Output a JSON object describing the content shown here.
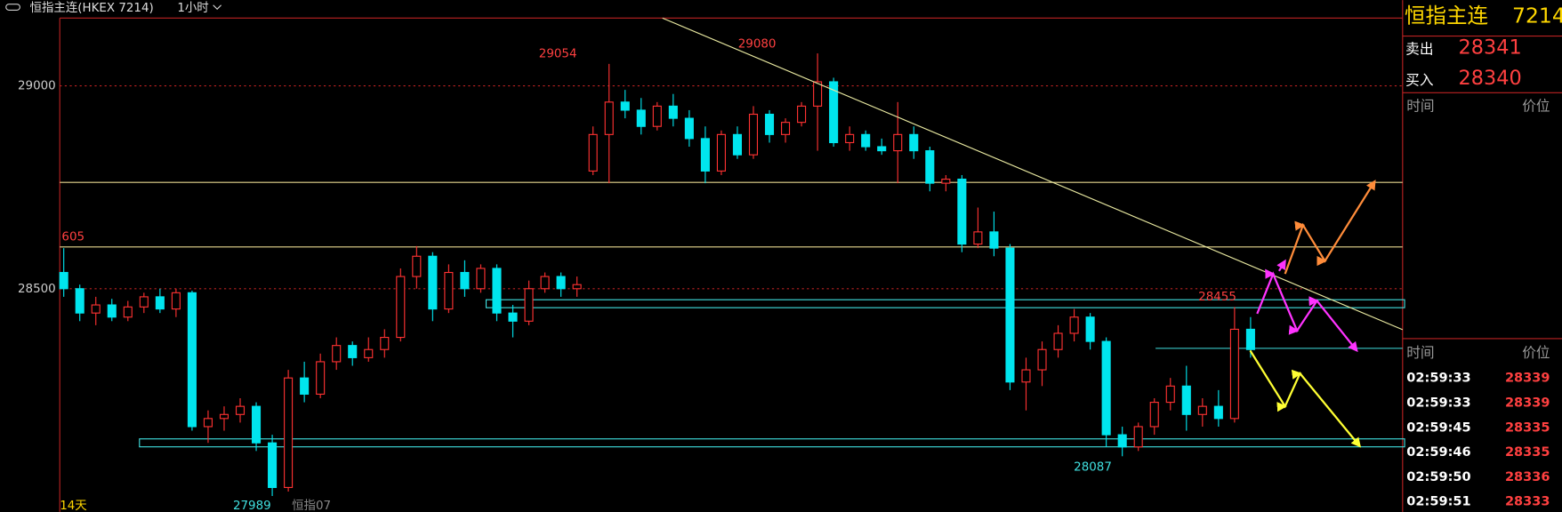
{
  "header": {
    "title": "恒指主连(HKEX 7214)",
    "period": "1小时"
  },
  "chart_data": {
    "type": "candlestick",
    "ylim": [
      27950,
      29167
    ],
    "yticks": [
      28500,
      29000
    ],
    "grid": true,
    "up_color": "#ff3232",
    "down_color": "#00e5ee",
    "candles": [
      [
        28540,
        28600,
        28480,
        28500
      ],
      [
        28500,
        28510,
        28420,
        28440
      ],
      [
        28440,
        28480,
        28410,
        28460
      ],
      [
        28460,
        28475,
        28420,
        28430
      ],
      [
        28430,
        28470,
        28420,
        28455
      ],
      [
        28455,
        28490,
        28440,
        28480
      ],
      [
        28480,
        28500,
        28440,
        28450
      ],
      [
        28450,
        28500,
        28430,
        28490
      ],
      [
        28490,
        28495,
        28150,
        28160
      ],
      [
        28160,
        28200,
        28120,
        28180
      ],
      [
        28180,
        28210,
        28150,
        28190
      ],
      [
        28190,
        28230,
        28170,
        28210
      ],
      [
        28210,
        28220,
        28100,
        28120
      ],
      [
        28120,
        28140,
        27989,
        28010
      ],
      [
        28010,
        28300,
        28000,
        28280
      ],
      [
        28280,
        28320,
        28220,
        28240
      ],
      [
        28240,
        28340,
        28230,
        28320
      ],
      [
        28320,
        28380,
        28300,
        28360
      ],
      [
        28360,
        28370,
        28310,
        28330
      ],
      [
        28330,
        28380,
        28320,
        28350
      ],
      [
        28350,
        28400,
        28330,
        28380
      ],
      [
        28380,
        28550,
        28370,
        28530
      ],
      [
        28530,
        28605,
        28500,
        28580
      ],
      [
        28580,
        28590,
        28420,
        28450
      ],
      [
        28450,
        28560,
        28440,
        28540
      ],
      [
        28540,
        28570,
        28480,
        28500
      ],
      [
        28500,
        28560,
        28490,
        28550
      ],
      [
        28550,
        28560,
        28420,
        28440
      ],
      [
        28440,
        28460,
        28380,
        28420
      ],
      [
        28420,
        28520,
        28410,
        28500
      ],
      [
        28500,
        28540,
        28490,
        28530
      ],
      [
        28530,
        28540,
        28480,
        28500
      ],
      [
        28500,
        28530,
        28480,
        28510
      ],
      [
        28790,
        28900,
        28780,
        28880
      ],
      [
        28880,
        29054,
        28760,
        28960
      ],
      [
        28960,
        28990,
        28920,
        28940
      ],
      [
        28940,
        28970,
        28880,
        28900
      ],
      [
        28900,
        28960,
        28890,
        28950
      ],
      [
        28950,
        28980,
        28900,
        28920
      ],
      [
        28920,
        28940,
        28850,
        28870
      ],
      [
        28870,
        28900,
        28760,
        28790
      ],
      [
        28790,
        28890,
        28780,
        28880
      ],
      [
        28880,
        28900,
        28820,
        28830
      ],
      [
        28830,
        28950,
        28820,
        28930
      ],
      [
        28930,
        28940,
        28860,
        28880
      ],
      [
        28880,
        28920,
        28860,
        28910
      ],
      [
        28910,
        28960,
        28900,
        28950
      ],
      [
        28950,
        29080,
        28840,
        29010
      ],
      [
        29010,
        29020,
        28850,
        28860
      ],
      [
        28860,
        28900,
        28840,
        28880
      ],
      [
        28880,
        28890,
        28840,
        28850
      ],
      [
        28850,
        28870,
        28830,
        28840
      ],
      [
        28840,
        28960,
        28760,
        28880
      ],
      [
        28880,
        28900,
        28820,
        28840
      ],
      [
        28840,
        28850,
        28740,
        28760
      ],
      [
        28760,
        28780,
        28740,
        28770
      ],
      [
        28770,
        28780,
        28590,
        28610
      ],
      [
        28610,
        28700,
        28600,
        28640
      ],
      [
        28640,
        28690,
        28580,
        28600
      ],
      [
        28600,
        28610,
        28250,
        28270
      ],
      [
        28270,
        28330,
        28200,
        28300
      ],
      [
        28300,
        28370,
        28260,
        28350
      ],
      [
        28350,
        28410,
        28330,
        28390
      ],
      [
        28390,
        28450,
        28370,
        28430
      ],
      [
        28430,
        28440,
        28350,
        28370
      ],
      [
        28370,
        28380,
        28110,
        28140
      ],
      [
        28140,
        28160,
        28087,
        28110
      ],
      [
        28110,
        28170,
        28100,
        28160
      ],
      [
        28160,
        28230,
        28140,
        28220
      ],
      [
        28220,
        28280,
        28200,
        28260
      ],
      [
        28260,
        28310,
        28150,
        28190
      ],
      [
        28190,
        28230,
        28160,
        28210
      ],
      [
        28210,
        28250,
        28160,
        28180
      ],
      [
        28180,
        28455,
        28170,
        28400
      ],
      [
        28400,
        28430,
        28330,
        28350
      ]
    ],
    "levels": [
      28762,
      28603,
      28463,
      28353,
      28120
    ],
    "annotations": [
      "29054",
      "29080",
      "605",
      "28455",
      "28087",
      "27989"
    ],
    "footer": [
      "14天",
      "恒指07"
    ]
  },
  "quote": {
    "name": "恒指主连",
    "code": "7214",
    "sell_label": "卖出",
    "sell": 28341,
    "buy_label": "买入",
    "buy": 28340,
    "col_time": "时间",
    "col_price": "价位"
  },
  "ticks_panel": {
    "col_time": "时间",
    "col_price": "价位",
    "rows": [
      [
        "02:59:33",
        28339
      ],
      [
        "02:59:33",
        28339
      ],
      [
        "02:59:45",
        28335
      ],
      [
        "02:59:46",
        28335
      ],
      [
        "02:59:50",
        28336
      ],
      [
        "02:59:51",
        28333
      ]
    ]
  }
}
